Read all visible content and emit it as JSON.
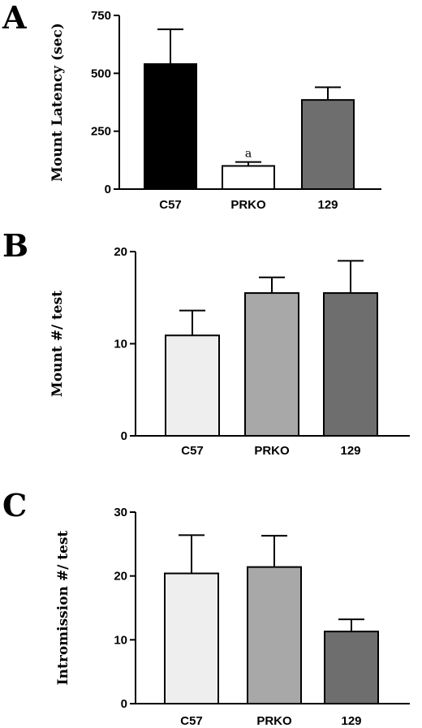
{
  "chart_data": [
    {
      "panel": "A",
      "type": "bar",
      "categories": [
        "C57",
        "PRKO",
        "129"
      ],
      "values": [
        540,
        100,
        385
      ],
      "errors": [
        150,
        17,
        55
      ],
      "colors": [
        "#000000",
        "#ffffff",
        "#6e6e6e"
      ],
      "annotations": [
        "",
        "a",
        ""
      ],
      "ylabel": "Mount Latency (sec)",
      "ylim": [
        0,
        750
      ],
      "yticks": [
        0,
        250,
        500,
        750
      ]
    },
    {
      "panel": "B",
      "type": "bar",
      "categories": [
        "C57",
        "PRKO",
        "129"
      ],
      "values": [
        10.9,
        15.5,
        15.5
      ],
      "errors": [
        2.7,
        1.7,
        3.5
      ],
      "colors": [
        "#eeeeee",
        "#a8a8a8",
        "#6e6e6e"
      ],
      "annotations": [
        "",
        "",
        ""
      ],
      "ylabel": "Mount #/ test",
      "ylim": [
        0,
        20
      ],
      "yticks": [
        0,
        10,
        20
      ]
    },
    {
      "panel": "C",
      "type": "bar",
      "categories": [
        "C57",
        "PRKO",
        "129"
      ],
      "values": [
        20.4,
        21.4,
        11.3
      ],
      "errors": [
        6.0,
        4.9,
        1.9
      ],
      "colors": [
        "#eeeeee",
        "#a8a8a8",
        "#6e6e6e"
      ],
      "annotations": [
        "",
        "",
        ""
      ],
      "ylabel": "Intromission #/ test",
      "ylim": [
        0,
        30
      ],
      "yticks": [
        0,
        10,
        20,
        30
      ]
    }
  ]
}
